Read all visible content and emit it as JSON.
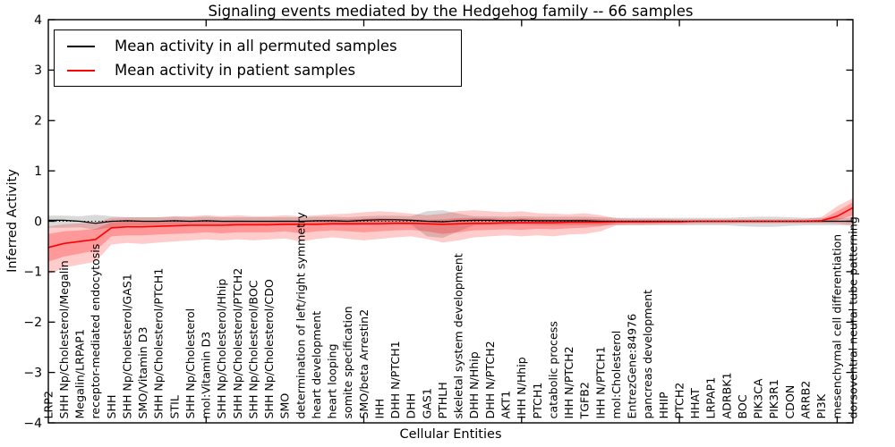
{
  "figure": {
    "title": "Signaling events mediated by the Hedgehog family -- 66 samples",
    "xlabel": "Cellular Entities",
    "ylabel": "Inferred Activity"
  },
  "legend": {
    "items": [
      {
        "label": "Mean activity in all permuted samples",
        "color": "#000000"
      },
      {
        "label": "Mean activity in patient samples",
        "color": "#ff0000"
      }
    ]
  },
  "chart_data": {
    "type": "line",
    "title": "Signaling events mediated by the Hedgehog family -- 66 samples",
    "xlabel": "Cellular Entities",
    "ylabel": "Inferred Activity",
    "ylim": [
      -4,
      4
    ],
    "yticks": [
      4,
      3,
      2,
      1,
      0,
      -1,
      -2,
      -3,
      -4
    ],
    "xtick_indices": [
      10,
      20,
      30,
      40,
      50
    ],
    "grid": false,
    "legend_position": "upper left",
    "zero_line": {
      "color": "#000000",
      "style": "dotted"
    },
    "categories": [
      "LRP2",
      "SHH Np/Cholesterol/Megalin",
      "Megalin/LRPAP1",
      "receptor-mediated endocytosis",
      "SHH",
      "SHH Np/Cholesterol/GAS1",
      "SMO/Vitamin D3",
      "SHH Np/Cholesterol/PTCH1",
      "STIL",
      "SHH Np/Cholesterol",
      "mol:Vitamin D3",
      "SHH Np/Cholesterol/Hhip",
      "SHH Np/Cholesterol/PTCH2",
      "SHH Np/Cholesterol/BOC",
      "SHH Np/Cholesterol/CDO",
      "SMO",
      "determination of left/right symmetry",
      "heart development",
      "heart looping",
      "somite specification",
      "SMO/beta Arrestin2",
      "IHH",
      "DHH N/PTCH1",
      "DHH",
      "GAS1",
      "PTHLH",
      "skeletal system development",
      "DHH N/Hhip",
      "DHH N/PTCH2",
      "AKT1",
      "IHH N/Hhip",
      "PTCH1",
      "catabolic process",
      "IHH N/PTCH2",
      "TGFB2",
      "IHH N/PTCH1",
      "mol:Cholesterol",
      "EntrezGene:84976",
      "pancreas development",
      "HHIP",
      "PTCH2",
      "HHAT",
      "LRPAP1",
      "ADRBK1",
      "BOC",
      "PIK3CA",
      "PIK3R1",
      "CDON",
      "ARRB2",
      "PI3K",
      "mesenchymal cell differentiation",
      "dorsoventral neural tube patterning"
    ],
    "series": [
      {
        "id": "permuted",
        "name": "Mean activity in all permuted samples",
        "color": "#000000",
        "line_width": 1.2,
        "values": [
          0.02,
          0.02,
          0.0,
          -0.04,
          0.0,
          0.01,
          0.0,
          0.0,
          0.01,
          0.0,
          0.01,
          0.0,
          0.0,
          0.0,
          0.0,
          0.0,
          0.0,
          0.01,
          0.01,
          0.0,
          0.02,
          0.03,
          0.03,
          0.02,
          0.0,
          -0.01,
          0.01,
          0.02,
          0.02,
          0.01,
          0.02,
          0.01,
          0.01,
          0.01,
          0.01,
          0.0,
          0.0,
          0.0,
          0.0,
          0.0,
          0.0,
          0.0,
          0.0,
          0.0,
          0.0,
          0.0,
          0.0,
          0.0,
          0.0,
          0.0,
          0.0,
          0.0
        ],
        "bands": [
          {
            "color": "#000000",
            "opacity": 0.15,
            "upper": [
              0.11,
              0.11,
              0.1,
              0.13,
              0.1,
              0.08,
              0.08,
              0.08,
              0.09,
              0.08,
              0.09,
              0.08,
              0.08,
              0.08,
              0.08,
              0.08,
              0.08,
              0.09,
              0.09,
              0.08,
              0.1,
              0.11,
              0.11,
              0.1,
              0.2,
              0.22,
              0.15,
              0.1,
              0.1,
              0.09,
              0.1,
              0.09,
              0.09,
              0.09,
              0.09,
              0.08,
              0.07,
              0.07,
              0.07,
              0.07,
              0.07,
              0.07,
              0.07,
              0.07,
              0.08,
              0.09,
              0.09,
              0.08,
              0.07,
              0.07,
              0.07,
              0.07
            ],
            "lower": [
              -0.13,
              -0.13,
              -0.12,
              -0.17,
              -0.12,
              -0.08,
              -0.08,
              -0.08,
              -0.07,
              -0.08,
              -0.07,
              -0.08,
              -0.08,
              -0.08,
              -0.08,
              -0.08,
              -0.08,
              -0.07,
              -0.07,
              -0.08,
              -0.07,
              -0.06,
              -0.06,
              -0.07,
              -0.3,
              -0.33,
              -0.2,
              -0.08,
              -0.07,
              -0.08,
              -0.07,
              -0.08,
              -0.08,
              -0.08,
              -0.08,
              -0.08,
              -0.08,
              -0.08,
              -0.08,
              -0.08,
              -0.08,
              -0.08,
              -0.08,
              -0.08,
              -0.1,
              -0.11,
              -0.11,
              -0.09,
              -0.08,
              -0.08,
              -0.08,
              -0.08
            ]
          }
        ]
      },
      {
        "id": "patient",
        "name": "Mean activity in patient samples",
        "color": "#ff0000",
        "line_width": 1.6,
        "values": [
          -0.52,
          -0.44,
          -0.4,
          -0.36,
          -0.13,
          -0.11,
          -0.11,
          -0.1,
          -0.09,
          -0.08,
          -0.08,
          -0.08,
          -0.07,
          -0.07,
          -0.07,
          -0.06,
          -0.06,
          -0.06,
          -0.05,
          -0.05,
          -0.05,
          -0.05,
          -0.04,
          -0.04,
          -0.05,
          -0.06,
          -0.05,
          -0.04,
          -0.04,
          -0.03,
          -0.03,
          -0.03,
          -0.03,
          -0.02,
          -0.02,
          -0.02,
          -0.01,
          -0.01,
          -0.01,
          -0.01,
          -0.01,
          0.0,
          0.0,
          0.0,
          0.0,
          0.0,
          0.0,
          0.0,
          0.0,
          0.01,
          0.1,
          0.27
        ],
        "bands": [
          {
            "color": "#ff0000",
            "opacity": 0.2,
            "upper": [
              -0.1,
              -0.06,
              -0.04,
              -0.02,
              0.07,
              0.08,
              0.08,
              0.08,
              0.1,
              0.1,
              0.12,
              0.1,
              0.12,
              0.1,
              0.1,
              0.12,
              0.1,
              0.12,
              0.14,
              0.15,
              0.18,
              0.2,
              0.18,
              0.15,
              0.12,
              0.15,
              0.2,
              0.22,
              0.2,
              0.18,
              0.2,
              0.16,
              0.15,
              0.14,
              0.16,
              0.12,
              0.06,
              0.05,
              0.05,
              0.05,
              0.04,
              0.04,
              0.04,
              0.04,
              0.04,
              0.04,
              0.04,
              0.04,
              0.05,
              0.08,
              0.3,
              0.46
            ],
            "lower": [
              -1.05,
              -0.92,
              -0.86,
              -0.8,
              -0.46,
              -0.43,
              -0.45,
              -0.42,
              -0.4,
              -0.38,
              -0.36,
              -0.38,
              -0.36,
              -0.38,
              -0.36,
              -0.34,
              -0.4,
              -0.35,
              -0.32,
              -0.35,
              -0.38,
              -0.35,
              -0.32,
              -0.3,
              -0.35,
              -0.42,
              -0.38,
              -0.32,
              -0.3,
              -0.28,
              -0.3,
              -0.28,
              -0.3,
              -0.26,
              -0.25,
              -0.2,
              -0.08,
              -0.07,
              -0.07,
              -0.06,
              -0.06,
              -0.05,
              -0.05,
              -0.05,
              -0.04,
              -0.04,
              -0.04,
              -0.04,
              -0.04,
              -0.04,
              -0.05,
              -0.08
            ]
          },
          {
            "color": "#ff0000",
            "opacity": 0.25,
            "upper": [
              -0.25,
              -0.2,
              -0.18,
              -0.15,
              -0.02,
              0.0,
              0.0,
              0.0,
              0.01,
              0.01,
              0.02,
              0.01,
              0.02,
              0.01,
              0.01,
              0.02,
              0.01,
              0.02,
              0.03,
              0.04,
              0.05,
              0.06,
              0.05,
              0.04,
              0.03,
              0.04,
              0.06,
              0.07,
              0.06,
              0.05,
              0.06,
              0.05,
              0.04,
              0.04,
              0.05,
              0.04,
              0.02,
              0.02,
              0.02,
              0.02,
              0.01,
              0.01,
              0.01,
              0.01,
              0.01,
              0.01,
              0.01,
              0.01,
              0.02,
              0.03,
              0.2,
              0.38
            ],
            "lower": [
              -0.8,
              -0.7,
              -0.64,
              -0.58,
              -0.3,
              -0.28,
              -0.28,
              -0.26,
              -0.25,
              -0.24,
              -0.22,
              -0.24,
              -0.22,
              -0.22,
              -0.22,
              -0.2,
              -0.24,
              -0.2,
              -0.18,
              -0.2,
              -0.22,
              -0.2,
              -0.18,
              -0.17,
              -0.2,
              -0.25,
              -0.22,
              -0.18,
              -0.17,
              -0.16,
              -0.17,
              -0.15,
              -0.16,
              -0.14,
              -0.13,
              -0.1,
              -0.05,
              -0.04,
              -0.04,
              -0.03,
              -0.03,
              -0.02,
              -0.02,
              -0.02,
              -0.02,
              -0.02,
              -0.02,
              -0.02,
              -0.02,
              -0.02,
              0.02,
              0.12
            ]
          }
        ]
      }
    ]
  }
}
